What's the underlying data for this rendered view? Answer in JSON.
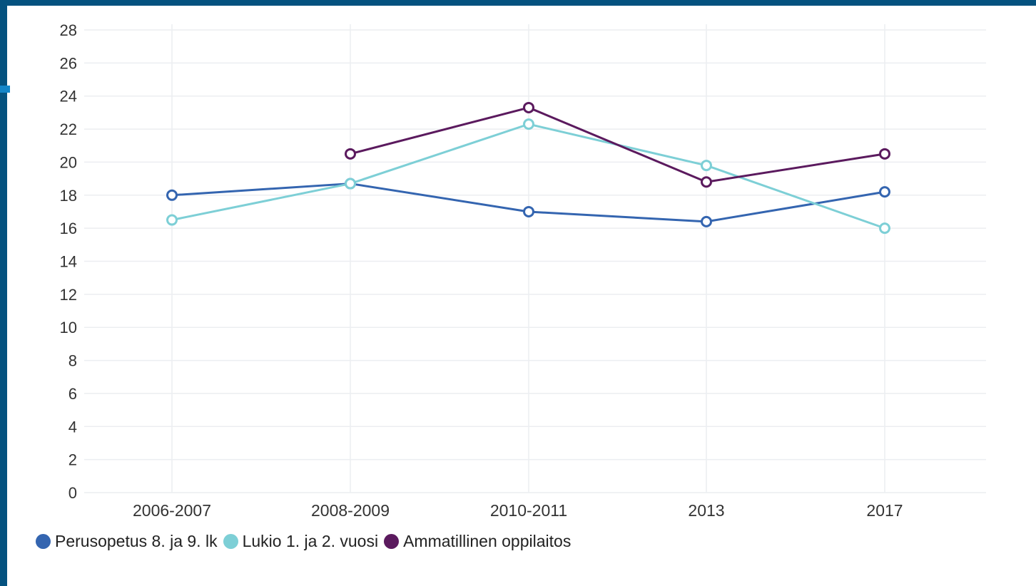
{
  "chart_data": {
    "type": "line",
    "categories": [
      "2006-2007",
      "2008-2009",
      "2010-2011",
      "2013",
      "2017"
    ],
    "ylim": [
      0,
      28
    ],
    "yticks": [
      0,
      2,
      4,
      6,
      8,
      10,
      12,
      14,
      16,
      18,
      20,
      22,
      24,
      26,
      28
    ],
    "grid": true,
    "legend_position": "bottom-left",
    "series": [
      {
        "name": "Perusopetus 8. ja 9. lk",
        "color": "#3465b0",
        "values": [
          18.0,
          18.7,
          17.0,
          16.4,
          18.2
        ]
      },
      {
        "name": "Lukio 1. ja 2. vuosi",
        "color": "#7dcfd6",
        "values": [
          16.5,
          18.7,
          22.3,
          19.8,
          16.0
        ]
      },
      {
        "name": "Ammatillinen oppilaitos",
        "color": "#5b1a5e",
        "values": [
          null,
          20.5,
          23.3,
          18.8,
          20.5
        ]
      }
    ]
  }
}
